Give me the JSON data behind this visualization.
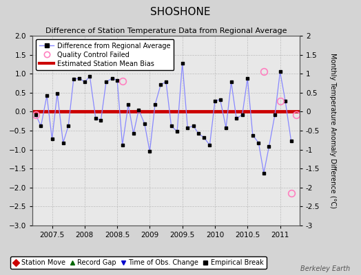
{
  "title": "SHOSHONE",
  "subtitle": "Difference of Station Temperature Data from Regional Average",
  "ylabel_right": "Monthly Temperature Anomaly Difference (°C)",
  "xlim": [
    2007.2,
    2011.3
  ],
  "ylim": [
    -3.0,
    2.0
  ],
  "yticks": [
    -3,
    -2.5,
    -2,
    -1.5,
    -1,
    -0.5,
    0,
    0.5,
    1,
    1.5,
    2
  ],
  "xticks": [
    2007.5,
    2008,
    2008.5,
    2009,
    2009.5,
    2010,
    2010.5,
    2011
  ],
  "xticklabels": [
    "2007.5",
    "2008",
    "2008.5",
    "2009",
    "2009.5",
    "2010",
    "2010.5",
    "2011"
  ],
  "mean_bias": 0.0,
  "fig_bg": "#d4d4d4",
  "plot_bg": "#e8e8e8",
  "line_color": "#8888ff",
  "marker_color": "#000000",
  "bias_color": "#cc0000",
  "watermark": "Berkeley Earth",
  "x_data": [
    2007.25,
    2007.33,
    2007.42,
    2007.5,
    2007.58,
    2007.67,
    2007.75,
    2007.83,
    2007.92,
    2008.0,
    2008.08,
    2008.17,
    2008.25,
    2008.33,
    2008.42,
    2008.5,
    2008.58,
    2008.67,
    2008.75,
    2008.83,
    2008.92,
    2009.0,
    2009.08,
    2009.17,
    2009.25,
    2009.33,
    2009.42,
    2009.5,
    2009.58,
    2009.67,
    2009.75,
    2009.83,
    2009.92,
    2010.0,
    2010.08,
    2010.17,
    2010.25,
    2010.33,
    2010.42,
    2010.5,
    2010.58,
    2010.67,
    2010.75,
    2010.83,
    2010.92,
    2011.0,
    2011.08,
    2011.17
  ],
  "y_data": [
    -0.08,
    -0.38,
    0.42,
    -0.72,
    0.48,
    -0.82,
    -0.38,
    0.85,
    0.88,
    0.78,
    0.93,
    -0.18,
    -0.22,
    0.78,
    0.88,
    0.83,
    -0.88,
    0.18,
    -0.58,
    0.05,
    -0.32,
    -1.05,
    0.18,
    0.72,
    0.78,
    -0.38,
    -0.52,
    1.28,
    -0.42,
    -0.38,
    -0.58,
    -0.68,
    -0.88,
    0.28,
    0.32,
    -0.42,
    0.78,
    -0.18,
    -0.08,
    0.88,
    -0.62,
    -0.82,
    -1.62,
    -0.92,
    -0.08,
    1.05,
    0.28,
    -0.78
  ],
  "qc_failed_x": [
    2007.25,
    2008.58,
    2010.75,
    2011.0,
    2011.17
  ],
  "qc_failed_y": [
    -0.08,
    0.8,
    1.05,
    0.28,
    -2.15
  ],
  "qc_outside_x": [
    2011.25
  ],
  "qc_outside_y": [
    -0.08
  ],
  "legend1_labels": [
    "Difference from Regional Average",
    "Quality Control Failed",
    "Estimated Station Mean Bias"
  ],
  "legend2_labels": [
    "Station Move",
    "Record Gap",
    "Time of Obs. Change",
    "Empirical Break"
  ]
}
